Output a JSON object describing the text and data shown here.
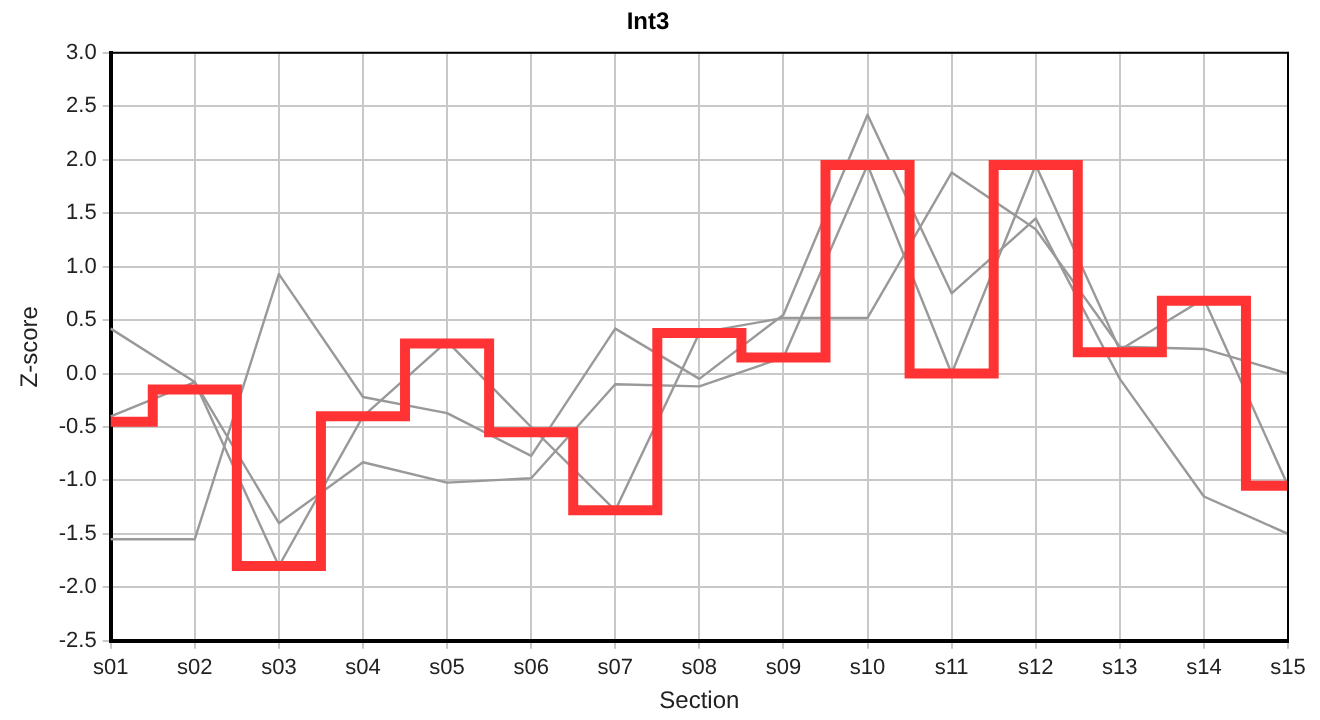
{
  "chart_data": {
    "type": "line",
    "title": "Int3",
    "xlabel": "Section",
    "ylabel": "Z-score",
    "categories": [
      "s01",
      "s02",
      "s03",
      "s04",
      "s05",
      "s06",
      "s07",
      "s08",
      "s09",
      "s10",
      "s11",
      "s12",
      "s13",
      "s14",
      "s15"
    ],
    "series": [
      {
        "type": "line",
        "color": "#999999",
        "values": [
          0.42,
          -0.08,
          -1.4,
          -0.83,
          -1.02,
          -0.98,
          -0.1,
          -0.12,
          0.15,
          1.95,
          0.0,
          1.95,
          0.22,
          0.7,
          -1.05
        ]
      },
      {
        "type": "line",
        "color": "#999999",
        "values": [
          -0.4,
          -0.08,
          -1.8,
          -0.4,
          0.3,
          -0.5,
          -1.28,
          0.38,
          0.52,
          0.52,
          1.88,
          1.35,
          0.25,
          0.23,
          0.0
        ]
      },
      {
        "type": "line",
        "color": "#999999",
        "values": [
          -1.55,
          -1.55,
          0.93,
          -0.22,
          -0.37,
          -0.77,
          0.42,
          -0.05,
          0.55,
          2.42,
          0.75,
          1.45,
          -0.05,
          -1.15,
          -1.5
        ]
      },
      {
        "type": "step",
        "color": "#ff3333",
        "values": [
          -0.45,
          -0.15,
          -1.8,
          -0.4,
          0.28,
          -0.55,
          -1.28,
          0.38,
          0.15,
          1.95,
          0.0,
          1.95,
          0.2,
          0.68,
          -1.05
        ]
      }
    ],
    "ylim": [
      -2.5,
      3
    ],
    "yticks": [
      {
        "value": -2.5,
        "label": "-2.5"
      },
      {
        "value": -2,
        "label": "-2.0"
      },
      {
        "value": -1.5,
        "label": "-1.5"
      },
      {
        "value": -1,
        "label": "-1.0"
      },
      {
        "value": -0.5,
        "label": "-0.5"
      },
      {
        "value": 0,
        "label": "0.0"
      },
      {
        "value": 0.5,
        "label": "0.5"
      },
      {
        "value": 1,
        "label": "1.0"
      },
      {
        "value": 1.5,
        "label": "1.5"
      },
      {
        "value": 2,
        "label": "2.0"
      },
      {
        "value": 2.5,
        "label": "2.5"
      },
      {
        "value": 3,
        "label": "3.0"
      }
    ],
    "grid": true,
    "legend": false,
    "marker": "none"
  }
}
